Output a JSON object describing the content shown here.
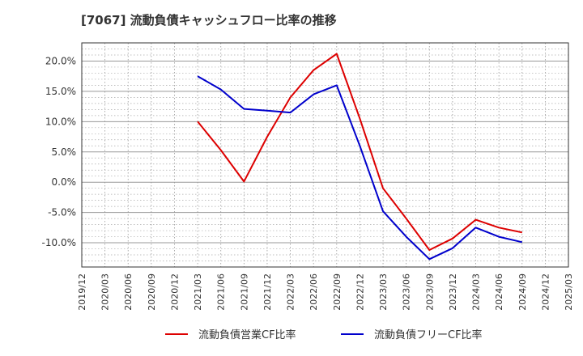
{
  "chart_data": {
    "type": "line",
    "title": "[7067]  流動負債キャッシュフロー比率の推移",
    "x_ticks": [
      "2019/12",
      "2020/03",
      "2020/06",
      "2020/09",
      "2020/12",
      "2021/03",
      "2021/06",
      "2021/09",
      "2021/12",
      "2022/03",
      "2022/06",
      "2022/09",
      "2022/12",
      "2023/03",
      "2023/06",
      "2023/09",
      "2023/12",
      "2024/03",
      "2024/06",
      "2024/09",
      "2024/12",
      "2025/03"
    ],
    "y_ticks": [
      "20.0%",
      "15.0%",
      "10.0%",
      "5.0%",
      "0.0%",
      "-5.0%",
      "-10.0%"
    ],
    "y_tick_values": [
      20,
      15,
      10,
      5,
      0,
      -5,
      -10
    ],
    "ylim": [
      -14,
      23
    ],
    "grid": true,
    "legend_position": "bottom",
    "series": [
      {
        "name": "流動負債営業CF比率",
        "color": "#dd0000",
        "x": [
          "2021/03",
          "2021/06",
          "2021/09",
          "2021/12",
          "2022/03",
          "2022/06",
          "2022/09",
          "2022/12",
          "2023/03",
          "2023/06",
          "2023/09",
          "2023/12",
          "2024/03",
          "2024/06",
          "2024/09"
        ],
        "values": [
          10.0,
          5.3,
          0.1,
          7.5,
          14.0,
          18.5,
          21.2,
          10.5,
          -1.0,
          -6.0,
          -11.2,
          -9.3,
          -6.2,
          -7.5,
          -8.3
        ]
      },
      {
        "name": "流動負債フリーCF比率",
        "color": "#0000cc",
        "x": [
          "2021/03",
          "2021/06",
          "2021/09",
          "2021/12",
          "2022/03",
          "2022/06",
          "2022/09",
          "2022/12",
          "2023/03",
          "2023/06",
          "2023/09",
          "2023/12",
          "2024/03",
          "2024/06",
          "2024/09"
        ],
        "values": [
          17.5,
          15.3,
          12.1,
          11.8,
          11.5,
          14.5,
          16.0,
          6.0,
          -4.8,
          -9.0,
          -12.7,
          -10.9,
          -7.5,
          -9.0,
          -9.9
        ]
      }
    ]
  }
}
